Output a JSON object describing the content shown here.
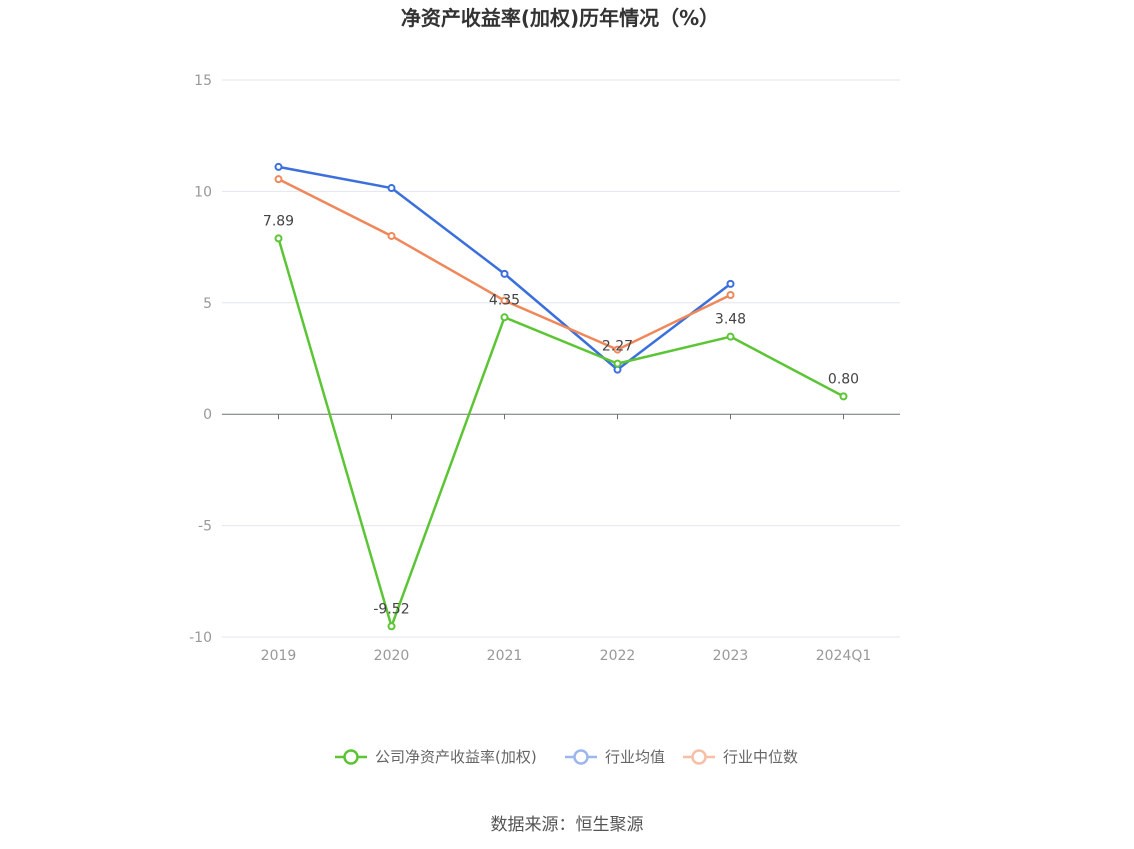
{
  "chart_data": {
    "type": "line",
    "title": "净资产收益率(加权)历年情况（%）",
    "categories": [
      "2019",
      "2020",
      "2021",
      "2022",
      "2023",
      "2024Q1"
    ],
    "ylim": [
      -10,
      15
    ],
    "yticks": [
      15,
      10,
      5,
      0,
      -5,
      -10
    ],
    "grid": true,
    "legend_position": "bottom",
    "series": [
      {
        "name": "公司净资产收益率(加权)",
        "color": "#5cc535",
        "values": [
          7.89,
          -9.52,
          4.35,
          2.27,
          3.48,
          0.8
        ],
        "labels": [
          "7.89",
          "-9.52",
          "4.35",
          "2.27",
          "3.48",
          "0.80"
        ]
      },
      {
        "name": "行业均值",
        "color": "#3a6fdc",
        "values": [
          11.1,
          10.15,
          6.3,
          2.0,
          5.85,
          null
        ]
      },
      {
        "name": "行业中位数",
        "color": "#f0875a",
        "values": [
          10.55,
          8.0,
          5.1,
          2.9,
          5.35,
          null
        ]
      }
    ],
    "source": "数据来源：恒生聚源"
  }
}
